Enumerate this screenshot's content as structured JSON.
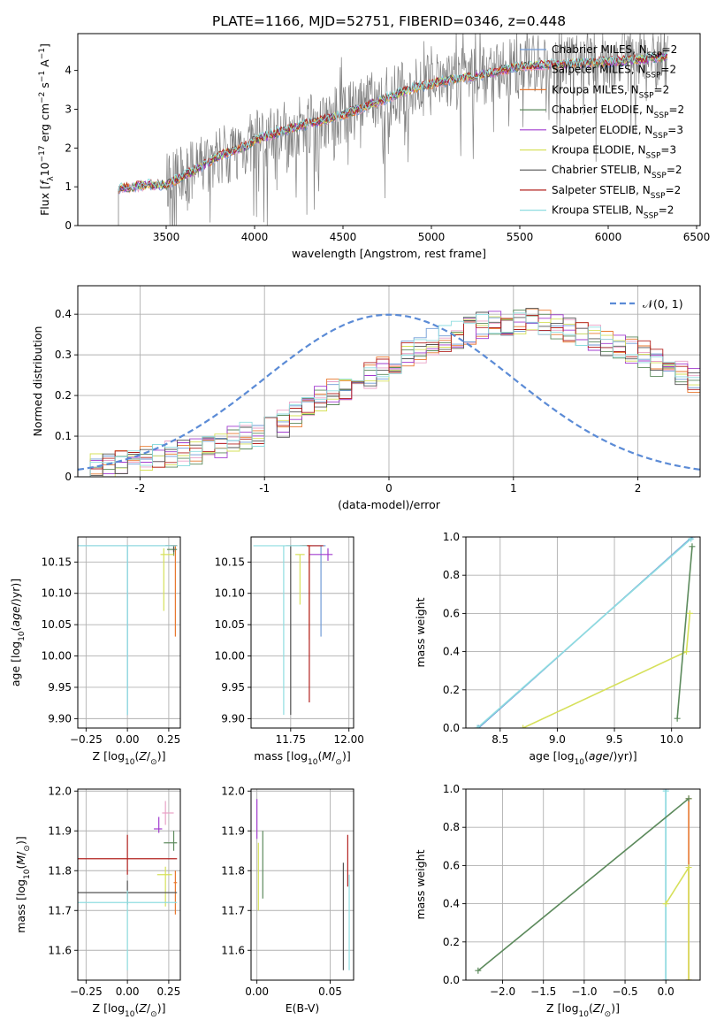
{
  "figure": {
    "title": "PLATE=1166, MJD=52751, FIBERID=0346, z=0.448"
  },
  "colors": {
    "grid": "#b0b0b0",
    "text": "#000000",
    "normal_curve": "#5b8bd6"
  },
  "models": [
    {
      "name": "Chabrier MILES, N_SSP=2",
      "label_main": "Chabrier MILES, N",
      "label_sub": "SSP",
      "label_end": "=2",
      "color": "#6f9ad6"
    },
    {
      "name": "Salpeter MILES, N_SSP=2",
      "label_main": "Salpeter MILES, N",
      "label_sub": "SSP",
      "label_end": "=2",
      "color": "#e9a1c6"
    },
    {
      "name": "Kroupa MILES, N_SSP=2",
      "label_main": "Kroupa MILES, N",
      "label_sub": "SSP",
      "label_end": "=2",
      "color": "#e8782f"
    },
    {
      "name": "Chabrier ELODIE, N_SSP=2",
      "label_main": "Chabrier ELODIE, N",
      "label_sub": "SSP",
      "label_end": "=2",
      "color": "#5c8a5c"
    },
    {
      "name": "Salpeter ELODIE, N_SSP=3",
      "label_main": "Salpeter ELODIE, N",
      "label_sub": "SSP",
      "label_end": "=3",
      "color": "#a23ccf"
    },
    {
      "name": "Kroupa ELODIE, N_SSP=3",
      "label_main": "Kroupa ELODIE, N",
      "label_sub": "SSP",
      "label_end": "=3",
      "color": "#d6e05a"
    },
    {
      "name": "Chabrier STELIB, N_SSP=2",
      "label_main": "Chabrier STELIB, N",
      "label_sub": "SSP",
      "label_end": "=2",
      "color": "#555555"
    },
    {
      "name": "Salpeter STELIB, N_SSP=2",
      "label_main": "Salpeter STELIB, N",
      "label_sub": "SSP",
      "label_end": "=2",
      "color": "#b3221f"
    },
    {
      "name": "Kroupa STELIB, N_SSP=2",
      "label_main": "Kroupa STELIB, N",
      "label_sub": "SSP",
      "label_end": "=2",
      "color": "#8fdde0"
    }
  ],
  "chart_data": [
    {
      "id": "spectrum",
      "type": "line",
      "title": "PLATE=1166, MJD=52751, FIBERID=0346, z=0.448",
      "xlabel": "wavelength [Angstrom, rest frame]",
      "ylabel": {
        "main": "Flux [",
        "f": "f",
        "lambda": "λ",
        "rest1": "10",
        "exp1": "−17",
        "rest2": " erg cm",
        "exp2": "−2",
        "rest3": " s",
        "exp3": "−1",
        "rest4": " A",
        "exp4": "−1",
        "close": "]"
      },
      "xlim": [
        3000,
        6520
      ],
      "ylim": [
        0,
        4.95
      ],
      "xticks": [
        3500,
        4000,
        4500,
        5000,
        5500,
        6000,
        6500
      ],
      "yticks": [
        0,
        1,
        2,
        3,
        4
      ],
      "grid": false,
      "legend_position": "top-right",
      "data_color": "#808080",
      "data_range": [
        3230,
        6340
      ],
      "continuum_knots": {
        "x": [
          3230,
          3400,
          3500,
          3650,
          3800,
          3950,
          4000,
          4200,
          4500,
          4700,
          4900,
          5100,
          5300,
          5500,
          5700,
          5900,
          6100,
          6340
        ],
        "y": [
          0.95,
          1.05,
          1.05,
          1.4,
          1.8,
          2.05,
          2.2,
          2.5,
          2.85,
          3.2,
          3.55,
          3.75,
          3.9,
          4.1,
          4.15,
          4.2,
          4.25,
          4.35
        ]
      }
    },
    {
      "id": "residuals",
      "type": "step",
      "xlabel": "(data-model)/error",
      "ylabel": "Normed distribution",
      "xlim": [
        -2.5,
        2.5
      ],
      "ylim": [
        0,
        0.47
      ],
      "xticks": [
        -2,
        -1,
        0,
        1,
        2
      ],
      "yticks": [
        0.0,
        0.1,
        0.2,
        0.3,
        0.4
      ],
      "grid": true,
      "legend_position": "top-right",
      "normal_label": {
        "main": "𝒩(0, 1)"
      },
      "bin_width": 0.1,
      "base_hist": [
        0.02,
        0.025,
        0.03,
        0.035,
        0.04,
        0.045,
        0.05,
        0.055,
        0.06,
        0.065,
        0.07,
        0.08,
        0.09,
        0.1,
        0.11,
        0.12,
        0.13,
        0.15,
        0.17,
        0.19,
        0.21,
        0.22,
        0.23,
        0.25,
        0.27,
        0.28,
        0.3,
        0.31,
        0.33,
        0.34,
        0.35,
        0.36,
        0.37,
        0.375,
        0.38,
        0.385,
        0.39,
        0.38,
        0.37,
        0.36,
        0.35,
        0.34,
        0.33,
        0.32,
        0.31,
        0.3,
        0.28,
        0.27,
        0.25,
        0.24,
        0.23,
        0.21,
        0.2,
        0.18,
        0.17,
        0.16,
        0.15,
        0.14,
        0.13,
        0.12,
        0.11,
        0.1,
        0.095,
        0.09,
        0.085,
        0.08,
        0.07,
        0.065,
        0.06,
        0.055,
        0.05,
        0.045,
        0.04,
        0.038,
        0.035,
        0.032,
        0.03,
        0.028,
        0.026,
        0.024,
        0.022,
        0.02,
        0.02,
        0.02,
        0.02,
        0.02,
        0.02,
        0.02,
        0.02,
        0.02,
        0.02,
        0.02,
        0.02,
        0.02,
        0.02,
        0.02,
        0.02,
        0.02,
        0.02,
        0.02
      ]
    },
    {
      "id": "age_vs_Z",
      "type": "errorbar",
      "xlabel": {
        "main": "Z [log",
        "sub": "10",
        "rest": "(Z/Z",
        "sub2": "⊙",
        "close": ")]"
      },
      "ylabel": {
        "main": "age  [log",
        "sub": "10",
        "rest": "(age/yr)]"
      },
      "xlim": [
        -0.3,
        0.32
      ],
      "ylim": [
        9.885,
        10.19
      ],
      "xticks": [
        -0.25,
        0.0,
        0.25
      ],
      "xticklabels": [
        "−0.25",
        "0.00",
        "0.25"
      ],
      "yticks": [
        9.9,
        9.95,
        10.0,
        10.05,
        10.1,
        10.15
      ],
      "yticklabels": [
        "9.90",
        "9.95",
        "10.00",
        "10.05",
        "10.10",
        "10.15"
      ],
      "grid": true,
      "points": [
        {
          "model": 0,
          "x": 0.0,
          "xerr": [
            0.3,
            0.3
          ],
          "y": 10.176,
          "yerr": [
            0.27,
            0.0
          ]
        },
        {
          "model": 2,
          "x": 0.29,
          "xerr": [
            0.03,
            0.01
          ],
          "y": 10.176,
          "yerr": [
            0.145,
            0.0
          ]
        },
        {
          "model": 3,
          "x": 0.28,
          "xerr": [
            0.04,
            0.02
          ],
          "y": 10.17,
          "yerr": [
            0.01,
            0.005
          ]
        },
        {
          "model": 5,
          "x": 0.22,
          "xerr": [
            0.02,
            0.06
          ],
          "y": 10.162,
          "yerr": [
            0.09,
            0.01
          ]
        },
        {
          "model": 6,
          "x": 0.28,
          "xerr": [
            0.05,
            0.02
          ],
          "y": 10.176,
          "yerr": [
            0.01,
            0.0
          ]
        },
        {
          "model": 8,
          "x": 0.0,
          "xerr": [
            0.3,
            0.3
          ],
          "y": 10.176,
          "yerr": [
            0.27,
            0.0
          ]
        }
      ]
    },
    {
      "id": "age_vs_mass",
      "type": "errorbar",
      "xlabel": {
        "main": "mass [log",
        "sub": "10",
        "rest": "(M/M",
        "sub2": "⊙",
        "close": ")]"
      },
      "xlim": [
        11.58,
        12.02
      ],
      "ylim": [
        9.885,
        10.19
      ],
      "xticks": [
        11.75,
        12.0
      ],
      "xticklabels": [
        "11.75",
        "12.00"
      ],
      "yticks": [
        9.9,
        9.95,
        10.0,
        10.05,
        10.1,
        10.15
      ],
      "yticklabels": [
        "9.90",
        "9.95",
        "10.00",
        "10.05",
        "10.10",
        "10.15"
      ],
      "grid": true,
      "points": [
        {
          "model": 0,
          "x": 11.88,
          "xerr": [
            0.04,
            0.02
          ],
          "y": 10.176,
          "yerr": [
            0.145,
            0.0
          ]
        },
        {
          "model": 2,
          "x": 11.83,
          "xerr": [
            0.03,
            0.01
          ],
          "y": 10.176,
          "yerr": [
            0.15,
            0.0
          ]
        },
        {
          "model": 4,
          "x": 11.91,
          "xerr": [
            0.08,
            0.02
          ],
          "y": 10.162,
          "yerr": [
            0.01,
            0.01
          ]
        },
        {
          "model": 5,
          "x": 11.79,
          "xerr": [
            0.02,
            0.02
          ],
          "y": 10.162,
          "yerr": [
            0.08,
            0.0
          ]
        },
        {
          "model": 6,
          "x": 11.75,
          "xerr": [
            0.02,
            0.08
          ],
          "y": 10.176,
          "yerr": [
            0.27,
            0.0
          ]
        },
        {
          "model": 7,
          "x": 11.83,
          "xerr": [
            0.04,
            0.06
          ],
          "y": 10.176,
          "yerr": [
            0.25,
            0.0
          ]
        },
        {
          "model": 8,
          "x": 11.72,
          "xerr": [
            0.13,
            0.1
          ],
          "y": 10.176,
          "yerr": [
            0.27,
            0.0
          ]
        }
      ]
    },
    {
      "id": "weight_vs_age",
      "type": "line",
      "xlabel": {
        "main": "age  [log",
        "sub": "10",
        "rest": "(age/yr)]"
      },
      "ylabel": "mass weight",
      "xlim": [
        8.2,
        10.25
      ],
      "ylim": [
        0,
        1.0
      ],
      "xticks": [
        8.5,
        9.0,
        9.5,
        10.0
      ],
      "xticklabels": [
        "8.5",
        "9.0",
        "9.5",
        "10.0"
      ],
      "yticks": [
        0.0,
        0.2,
        0.4,
        0.6,
        0.8,
        1.0
      ],
      "yticklabels": [
        "0.0",
        "0.2",
        "0.4",
        "0.6",
        "0.8",
        "1.0"
      ],
      "grid": true,
      "series": [
        {
          "model": 0,
          "x": [
            8.31,
            10.18
          ],
          "y": [
            0.0,
            1.0
          ]
        },
        {
          "model": 8,
          "x": [
            8.3,
            10.17
          ],
          "y": [
            0.0,
            0.99
          ]
        },
        {
          "model": 5,
          "x": [
            8.7,
            10.13,
            10.16
          ],
          "y": [
            0.0,
            0.4,
            0.6
          ]
        },
        {
          "model": 3,
          "x": [
            10.05,
            10.18
          ],
          "y": [
            0.05,
            0.95
          ]
        }
      ]
    },
    {
      "id": "mass_vs_Z",
      "type": "errorbar",
      "xlabel": {
        "main": "Z [log",
        "sub": "10",
        "rest": "(Z/Z",
        "sub2": "⊙",
        "close": ")]"
      },
      "ylabel": {
        "main": "mass [log",
        "sub": "10",
        "rest": "(M/M",
        "sub2": "⊙",
        "close": ")]"
      },
      "xlim": [
        -0.3,
        0.32
      ],
      "ylim": [
        11.525,
        12.005
      ],
      "xticks": [
        -0.25,
        0.0,
        0.25
      ],
      "xticklabels": [
        "−0.25",
        "0.00",
        "0.25"
      ],
      "yticks": [
        11.6,
        11.7,
        11.8,
        11.9,
        12.0
      ],
      "yticklabels": [
        "11.6",
        "11.7",
        "11.8",
        "11.9",
        "12.0"
      ],
      "grid": true,
      "points": [
        {
          "model": 1,
          "x": 0.23,
          "xerr": [
            0.02,
            0.05
          ],
          "y": 11.945,
          "yerr": [
            0.03,
            0.03
          ]
        },
        {
          "model": 4,
          "x": 0.19,
          "xerr": [
            0.03,
            0.02
          ],
          "y": 11.905,
          "yerr": [
            0.01,
            0.03
          ]
        },
        {
          "model": 3,
          "x": 0.28,
          "xerr": [
            0.06,
            0.02
          ],
          "y": 11.87,
          "yerr": [
            0.02,
            0.03
          ]
        },
        {
          "model": 7,
          "x": 0.0,
          "xerr": [
            0.3,
            0.3
          ],
          "y": 11.83,
          "yerr": [
            0.04,
            0.06
          ]
        },
        {
          "model": 5,
          "x": 0.23,
          "xerr": [
            0.05,
            0.04
          ],
          "y": 11.79,
          "yerr": [
            0.08,
            0.02
          ]
        },
        {
          "model": 2,
          "x": 0.29,
          "xerr": [
            0.01,
            0.01
          ],
          "y": 11.77,
          "yerr": [
            0.08,
            0.03
          ]
        },
        {
          "model": 6,
          "x": 0.0,
          "xerr": [
            0.3,
            0.3
          ],
          "y": 11.745,
          "yerr": [
            0.03,
            0.03
          ]
        },
        {
          "model": 8,
          "x": 0.0,
          "xerr": [
            0.3,
            0.3
          ],
          "y": 11.72,
          "yerr": [
            0.17,
            0.03
          ]
        }
      ]
    },
    {
      "id": "mass_vs_ebv",
      "type": "errorbar",
      "xlabel": "E(B-V)",
      "xlim": [
        -0.004,
        0.066
      ],
      "ylim": [
        11.525,
        12.005
      ],
      "xticks": [
        0.0,
        0.05
      ],
      "xticklabels": [
        "0.00",
        "0.05"
      ],
      "yticks": [
        11.6,
        11.7,
        11.8,
        11.9,
        12.0
      ],
      "yticklabels": [
        "11.6",
        "11.7",
        "11.8",
        "11.9",
        "12.0"
      ],
      "grid": true,
      "points": [
        {
          "model": 4,
          "x": 0.0,
          "xerr": [
            0.0,
            0.0
          ],
          "y": 11.92,
          "yerr": [
            0.04,
            0.06
          ]
        },
        {
          "model": 3,
          "x": 0.004,
          "xerr": [
            0.0,
            0.0
          ],
          "y": 11.82,
          "yerr": [
            0.09,
            0.08
          ]
        },
        {
          "model": 5,
          "x": 0.001,
          "xerr": [
            0.0,
            0.0
          ],
          "y": 11.79,
          "yerr": [
            0.09,
            0.08
          ]
        },
        {
          "model": 6,
          "x": 0.059,
          "xerr": [
            0.0,
            0.0
          ],
          "y": 11.69,
          "yerr": [
            0.14,
            0.13
          ]
        },
        {
          "model": 7,
          "x": 0.062,
          "xerr": [
            0.0,
            0.0
          ],
          "y": 11.82,
          "yerr": [
            0.06,
            0.07
          ]
        },
        {
          "model": 8,
          "x": 0.063,
          "xerr": [
            0.0,
            0.0
          ],
          "y": 11.67,
          "yerr": [
            0.12,
            0.12
          ]
        }
      ]
    },
    {
      "id": "weight_vs_Z",
      "type": "line",
      "xlabel": {
        "main": "Z [log",
        "sub": "10",
        "rest": "(Z/Z",
        "sub2": "⊙",
        "close": ")]"
      },
      "ylabel": "mass weight",
      "xlim": [
        -2.45,
        0.42
      ],
      "ylim": [
        0,
        1.0
      ],
      "xticks": [
        -2.0,
        -1.5,
        -1.0,
        -0.5,
        0.0
      ],
      "xticklabels": [
        "−2.0",
        "−1.5",
        "−1.0",
        "−0.5",
        "0.0"
      ],
      "yticks": [
        0.0,
        0.2,
        0.4,
        0.6,
        0.8,
        1.0
      ],
      "yticklabels": [
        "0.0",
        "0.2",
        "0.4",
        "0.6",
        "0.8",
        "1.0"
      ],
      "grid": true,
      "series": [
        {
          "model": 0,
          "x": [
            0.0,
            0.0
          ],
          "y": [
            0.0,
            1.0
          ]
        },
        {
          "model": 8,
          "x": [
            0.0,
            0.0
          ],
          "y": [
            0.0,
            0.99
          ]
        },
        {
          "model": 2,
          "x": [
            0.28,
            0.28
          ],
          "y": [
            0.0,
            0.95
          ]
        },
        {
          "model": 5,
          "x": [
            0.0,
            0.28,
            0.28
          ],
          "y": [
            0.4,
            0.59,
            0.0
          ]
        },
        {
          "model": 3,
          "x": [
            -2.3,
            0.28
          ],
          "y": [
            0.05,
            0.95
          ]
        }
      ]
    }
  ]
}
